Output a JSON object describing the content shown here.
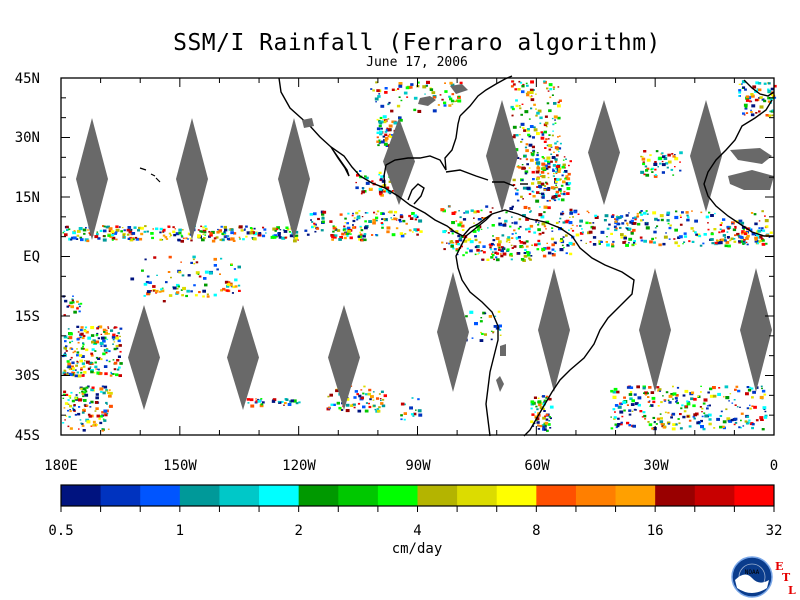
{
  "title": "SSM/I Rainfall (Ferraro algorithm)",
  "date": "June 17, 2006",
  "map": {
    "lat_labels": [
      "45N",
      "30N",
      "15N",
      "EQ",
      "15S",
      "30S",
      "45S"
    ],
    "lon_labels": [
      "180E",
      "150W",
      "120W",
      "90W",
      "60W",
      "30W",
      "0"
    ],
    "land_color": "#000000",
    "gap_color": "#696969"
  },
  "colorbar": {
    "unit": "cm/day",
    "tick_labels": [
      "0.5",
      "1",
      "2",
      "4",
      "8",
      "16",
      "32"
    ],
    "colors": [
      "#00137f",
      "#0033bf",
      "#0055ff",
      "#009999",
      "#00c8c8",
      "#00ffff",
      "#009900",
      "#00c800",
      "#00ff00",
      "#b4b400",
      "#dcdc00",
      "#ffff00",
      "#ff5000",
      "#ff7f00",
      "#ffa000",
      "#990000",
      "#c80000",
      "#ff0000"
    ]
  },
  "logos": {
    "noaa_text": "NOAA",
    "etl_letters": [
      "E",
      "T",
      "L"
    ]
  }
}
